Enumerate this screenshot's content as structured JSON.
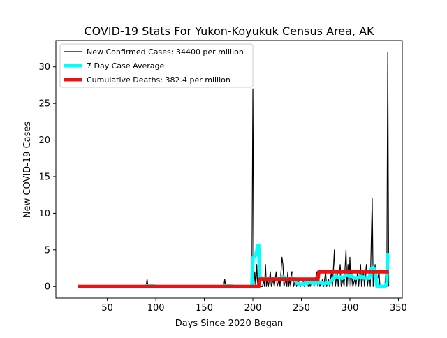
{
  "chart_data": {
    "type": "line",
    "title": "COVID-19 Stats For Yukon-Koyukuk Census Area, AK",
    "xlabel": "Days Since 2020 Began",
    "ylabel": "New COVID-19 Cases",
    "xlim": [
      -3,
      354
    ],
    "ylim": [
      -1.6,
      33.6
    ],
    "xticks": [
      50,
      100,
      150,
      200,
      250,
      300,
      350
    ],
    "yticks": [
      0,
      5,
      10,
      15,
      20,
      25,
      30
    ],
    "grid": false,
    "legend_position": "upper-left",
    "series": [
      {
        "name": "New Confirmed Cases: 34400 per million",
        "color": "#000000",
        "points": [
          [
            20,
            0
          ],
          [
            90,
            0
          ],
          [
            91,
            1
          ],
          [
            92,
            0
          ],
          [
            170,
            0
          ],
          [
            171,
            1
          ],
          [
            172,
            0
          ],
          [
            199,
            0
          ],
          [
            200,
            27
          ],
          [
            201,
            0
          ],
          [
            202,
            2
          ],
          [
            203,
            0
          ],
          [
            204,
            3
          ],
          [
            205,
            0
          ],
          [
            206,
            1
          ],
          [
            207,
            0
          ],
          [
            210,
            0
          ],
          [
            211,
            1
          ],
          [
            212,
            0
          ],
          [
            213,
            3
          ],
          [
            214,
            0
          ],
          [
            215,
            1
          ],
          [
            216,
            0
          ],
          [
            218,
            2
          ],
          [
            219,
            0
          ],
          [
            221,
            1
          ],
          [
            222,
            0
          ],
          [
            224,
            2
          ],
          [
            225,
            0
          ],
          [
            227,
            1
          ],
          [
            228,
            0
          ],
          [
            230,
            4
          ],
          [
            231,
            3
          ],
          [
            232,
            0
          ],
          [
            234,
            1
          ],
          [
            235,
            0
          ],
          [
            236,
            2
          ],
          [
            237,
            0
          ],
          [
            238,
            1
          ],
          [
            239,
            0
          ],
          [
            240,
            2
          ],
          [
            241,
            2
          ],
          [
            242,
            0
          ],
          [
            244,
            1
          ],
          [
            245,
            0
          ],
          [
            248,
            1
          ],
          [
            249,
            0
          ],
          [
            252,
            1
          ],
          [
            253,
            0
          ],
          [
            256,
            1
          ],
          [
            257,
            0
          ],
          [
            258,
            1
          ],
          [
            259,
            0
          ],
          [
            262,
            1
          ],
          [
            263,
            0
          ],
          [
            266,
            2
          ],
          [
            267,
            0
          ],
          [
            268,
            1
          ],
          [
            269,
            0
          ],
          [
            272,
            1
          ],
          [
            273,
            0
          ],
          [
            275,
            2
          ],
          [
            276,
            0
          ],
          [
            278,
            1
          ],
          [
            279,
            0
          ],
          [
            281,
            2
          ],
          [
            282,
            0
          ],
          [
            284,
            5
          ],
          [
            285,
            0
          ],
          [
            287,
            2
          ],
          [
            288,
            0
          ],
          [
            290,
            3
          ],
          [
            291,
            0
          ],
          [
            293,
            1
          ],
          [
            294,
            0
          ],
          [
            296,
            5
          ],
          [
            297,
            0
          ],
          [
            298,
            3
          ],
          [
            299,
            0
          ],
          [
            300,
            4
          ],
          [
            301,
            0
          ],
          [
            302,
            2
          ],
          [
            303,
            0
          ],
          [
            305,
            1
          ],
          [
            306,
            0
          ],
          [
            308,
            2
          ],
          [
            309,
            0
          ],
          [
            311,
            3
          ],
          [
            312,
            0
          ],
          [
            314,
            2
          ],
          [
            315,
            0
          ],
          [
            317,
            3
          ],
          [
            318,
            0
          ],
          [
            320,
            2
          ],
          [
            321,
            0
          ],
          [
            323,
            12
          ],
          [
            324,
            0
          ],
          [
            326,
            3
          ],
          [
            327,
            0
          ],
          [
            330,
            2
          ],
          [
            331,
            0
          ],
          [
            336,
            0
          ],
          [
            337,
            2
          ],
          [
            338,
            0
          ],
          [
            339,
            32
          ],
          [
            340,
            0
          ]
        ]
      },
      {
        "name": "7 Day Case Average",
        "color": "#00ffff",
        "points": [
          [
            20,
            0
          ],
          [
            89,
            0
          ],
          [
            91,
            0.14
          ],
          [
            98,
            0.14
          ],
          [
            99,
            0
          ],
          [
            169,
            0
          ],
          [
            171,
            0.14
          ],
          [
            178,
            0.14
          ],
          [
            179,
            0
          ],
          [
            199,
            0
          ],
          [
            200,
            3.9
          ],
          [
            202,
            4.1
          ],
          [
            203,
            4.3
          ],
          [
            204,
            4.8
          ],
          [
            205,
            5.6
          ],
          [
            206,
            5.6
          ],
          [
            207,
            1.2
          ],
          [
            208,
            1.3
          ],
          [
            210,
            1.0
          ],
          [
            212,
            1.1
          ],
          [
            214,
            1.0
          ],
          [
            216,
            1.1
          ],
          [
            218,
            1.0
          ],
          [
            220,
            1.0
          ],
          [
            222,
            1.1
          ],
          [
            224,
            1.0
          ],
          [
            226,
            1.0
          ],
          [
            228,
            1.1
          ],
          [
            230,
            1.3
          ],
          [
            232,
            1.3
          ],
          [
            234,
            1.1
          ],
          [
            236,
            1.1
          ],
          [
            238,
            1.0
          ],
          [
            240,
            1.2
          ],
          [
            242,
            1.0
          ],
          [
            244,
            0.8
          ],
          [
            246,
            0.4
          ],
          [
            248,
            0.3
          ],
          [
            250,
            0.3
          ],
          [
            252,
            0.3
          ],
          [
            254,
            0.5
          ],
          [
            256,
            0.4
          ],
          [
            258,
            0.6
          ],
          [
            260,
            0.5
          ],
          [
            262,
            0.5
          ],
          [
            264,
            0.4
          ],
          [
            266,
            0.6
          ],
          [
            268,
            0.5
          ],
          [
            270,
            0.5
          ],
          [
            272,
            0.4
          ],
          [
            274,
            0.4
          ],
          [
            276,
            0.5
          ],
          [
            278,
            0.4
          ],
          [
            280,
            0.6
          ],
          [
            282,
            0.9
          ],
          [
            284,
            1.3
          ],
          [
            286,
            1.4
          ],
          [
            288,
            1.2
          ],
          [
            290,
            1.3
          ],
          [
            292,
            1.1
          ],
          [
            294,
            1.3
          ],
          [
            296,
            1.6
          ],
          [
            298,
            1.5
          ],
          [
            300,
            1.4
          ],
          [
            302,
            1.4
          ],
          [
            304,
            1.2
          ],
          [
            306,
            1.1
          ],
          [
            308,
            1.2
          ],
          [
            310,
            1.4
          ],
          [
            312,
            1.2
          ],
          [
            314,
            1.3
          ],
          [
            316,
            1.1
          ],
          [
            318,
            1.2
          ],
          [
            320,
            1.1
          ],
          [
            322,
            2.4
          ],
          [
            324,
            2.6
          ],
          [
            326,
            2.2
          ],
          [
            328,
            0
          ],
          [
            336,
            0
          ],
          [
            337,
            0.3
          ],
          [
            338,
            0.3
          ],
          [
            339,
            4.6
          ]
        ]
      },
      {
        "name": "Cumulative Deaths: 382.4 per million",
        "color": "#ee1111",
        "points": [
          [
            20,
            0
          ],
          [
            206,
            0
          ],
          [
            207,
            1
          ],
          [
            267,
            1
          ],
          [
            268,
            2
          ],
          [
            340,
            2
          ]
        ]
      }
    ]
  }
}
